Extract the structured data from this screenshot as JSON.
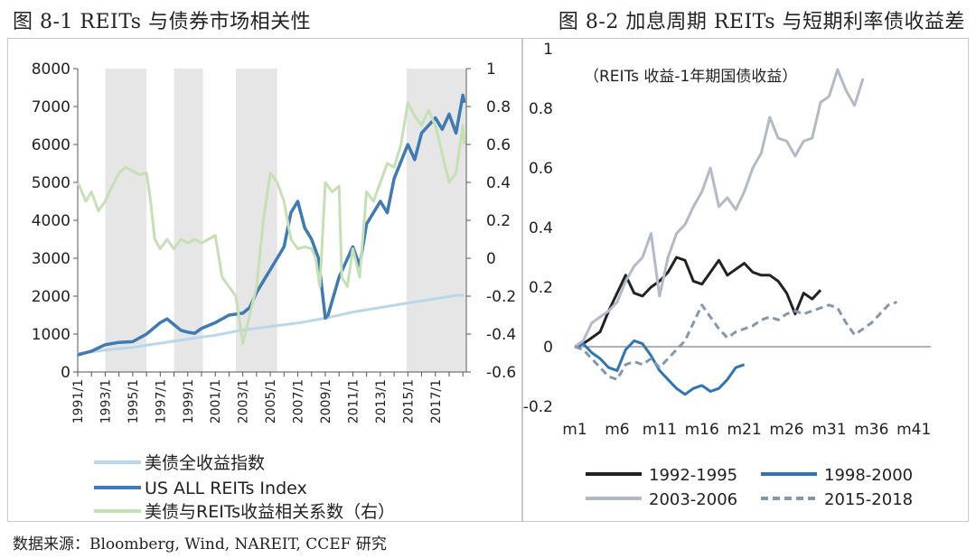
{
  "header": {
    "left_title": "图 8-1 REITs 与债券市场相关性",
    "right_title": "图 8-2 加息周期 REITs 与短期利率债收益差"
  },
  "footer": {
    "source": "数据来源：Bloomberg, Wind, NAREIT, CCEF 研究"
  },
  "colors": {
    "treasury": "#b9d7ea",
    "reits": "#3e7ab3",
    "correlation": "#c5e0b4",
    "shade": "#e6e6e6",
    "s1992": "#222222",
    "s1998": "#2f75b5",
    "s2003": "#b4b8c8",
    "s2015": "#8497b0"
  },
  "chart_data": [
    {
      "type": "line",
      "title": "图 8-1 REITs 与债券市场相关性",
      "x_range": [
        1991,
        2019.25
      ],
      "x_ticks": [
        "1991/1",
        "1993/1",
        "1995/1",
        "1997/1",
        "1999/1",
        "2001/1",
        "2003/1",
        "2005/1",
        "2007/1",
        "2009/1",
        "2011/1",
        "2013/1",
        "2015/1",
        "2017/1"
      ],
      "y_left": {
        "min": 0,
        "max": 8000,
        "ticks": [
          "0",
          "1000",
          "2000",
          "3000",
          "4000",
          "5000",
          "6000",
          "7000",
          "8000"
        ]
      },
      "y_right": {
        "min": -0.6,
        "max": 1.0,
        "ticks": [
          "-0.6",
          "-0.4",
          "-0.2",
          "0",
          "0.2",
          "0.4",
          "0.6",
          "0.8",
          "1"
        ]
      },
      "shaded_periods": [
        [
          1993.0,
          1996.0
        ],
        [
          1998.0,
          2000.1
        ],
        [
          2002.5,
          2005.5
        ],
        [
          2014.9,
          2019.2
        ]
      ],
      "series": [
        {
          "name": "美债全收益指数",
          "axis": "left",
          "color_key": "treasury",
          "x": [
            1991,
            1993,
            1995,
            1997,
            1999,
            2001,
            2003,
            2005,
            2007,
            2009,
            2011,
            2013,
            2015,
            2017,
            2018.5,
            2019.1
          ],
          "values": [
            480,
            580,
            650,
            760,
            870,
            970,
            1110,
            1200,
            1290,
            1420,
            1580,
            1700,
            1820,
            1930,
            2020,
            2020
          ]
        },
        {
          "name": "US ALL REITs Index",
          "axis": "left",
          "color_key": "reits",
          "x": [
            1991,
            1992,
            1993,
            1994,
            1995,
            1996,
            1997,
            1997.5,
            1998,
            1998.5,
            1999,
            1999.5,
            2000,
            2001,
            2002,
            2003,
            2003.5,
            2004,
            2005,
            2006,
            2006.5,
            2007,
            2007.5,
            2008,
            2008.5,
            2009,
            2009.2,
            2010,
            2011,
            2011.5,
            2012,
            2013,
            2013.5,
            2014,
            2015,
            2015.5,
            2016,
            2017,
            2017.5,
            2018,
            2018.5,
            2019,
            2019.1
          ],
          "values": [
            450,
            550,
            720,
            780,
            800,
            1000,
            1300,
            1400,
            1250,
            1100,
            1050,
            1020,
            1150,
            1300,
            1500,
            1550,
            1700,
            2100,
            2700,
            3300,
            4200,
            4500,
            3800,
            3500,
            3000,
            1420,
            1500,
            2500,
            3300,
            2800,
            3900,
            4500,
            4200,
            5100,
            6000,
            5600,
            6300,
            6700,
            6400,
            6800,
            6300,
            7300,
            7100
          ]
        },
        {
          "name": "美债与REITs收益相关系数（右）",
          "axis": "right",
          "color_key": "correlation",
          "x": [
            1991,
            1991.3,
            1991.6,
            1992,
            1992.5,
            1993,
            1993.3,
            1994,
            1994.5,
            1995,
            1995.5,
            1996,
            1996.3,
            1996.6,
            1997,
            1997.5,
            1998,
            1998.5,
            1999,
            1999.5,
            2000,
            2000.5,
            2001,
            2001.5,
            2002,
            2002.5,
            2003,
            2003.5,
            2004,
            2004.5,
            2005,
            2005.5,
            2006,
            2006.5,
            2007,
            2007.5,
            2008,
            2008.3,
            2008.6,
            2009,
            2009.5,
            2010,
            2010.2,
            2010.6,
            2011,
            2011.5,
            2012,
            2012.5,
            2013,
            2013.5,
            2014,
            2014.5,
            2015,
            2015.5,
            2016,
            2016.5,
            2017,
            2017.5,
            2018,
            2018.5,
            2019,
            2019.1
          ],
          "values": [
            0.4,
            0.35,
            0.3,
            0.35,
            0.25,
            0.3,
            0.35,
            0.45,
            0.48,
            0.46,
            0.44,
            0.45,
            0.3,
            0.1,
            0.05,
            0.1,
            0.05,
            0.1,
            0.08,
            0.1,
            0.08,
            0.1,
            0.12,
            -0.1,
            -0.15,
            -0.2,
            -0.45,
            -0.3,
            -0.15,
            0.2,
            0.45,
            0.4,
            0.3,
            0.1,
            0.05,
            0.06,
            0.05,
            0.0,
            -0.15,
            0.4,
            0.35,
            0.38,
            -0.1,
            -0.15,
            0.05,
            -0.1,
            0.35,
            0.3,
            0.4,
            0.5,
            0.48,
            0.6,
            0.82,
            0.75,
            0.7,
            0.78,
            0.7,
            0.55,
            0.4,
            0.45,
            0.7,
            0.6
          ]
        }
      ]
    },
    {
      "type": "line",
      "title": "图 8-2 加息周期 REITs 与短期利率债收益差",
      "annotation": "（REITs 收益-1年期国债收益）",
      "x_range": [
        1,
        43
      ],
      "x_ticks": [
        "m1",
        "m6",
        "m11",
        "m16",
        "m21",
        "m26",
        "m31",
        "m36",
        "m41"
      ],
      "y": {
        "min": -0.2,
        "max": 1.0,
        "ticks": [
          "-0.2",
          "0",
          "0.2",
          "0.4",
          "0.6",
          "0.8",
          "1"
        ]
      },
      "series": [
        {
          "name": "1992-1995",
          "color_key": "s1992",
          "dash": false,
          "values": [
            0,
            0.01,
            0.03,
            0.05,
            0.12,
            0.18,
            0.24,
            0.18,
            0.17,
            0.2,
            0.22,
            0.25,
            0.3,
            0.29,
            0.22,
            0.21,
            0.25,
            0.29,
            0.24,
            0.26,
            0.28,
            0.25,
            0.24,
            0.24,
            0.22,
            0.18,
            0.11,
            0.18,
            0.16,
            0.19
          ]
        },
        {
          "name": "1998-2000",
          "color_key": "s1998",
          "dash": false,
          "values": [
            0,
            0.01,
            -0.02,
            -0.04,
            -0.07,
            -0.08,
            -0.01,
            0.02,
            0.01,
            -0.03,
            -0.08,
            -0.11,
            -0.14,
            -0.16,
            -0.14,
            -0.13,
            -0.15,
            -0.14,
            -0.11,
            -0.07,
            -0.06
          ]
        },
        {
          "name": "2003-2006",
          "color_key": "s2003",
          "dash": false,
          "values": [
            0,
            0.02,
            0.08,
            0.1,
            0.12,
            0.15,
            0.22,
            0.27,
            0.3,
            0.38,
            0.17,
            0.3,
            0.38,
            0.41,
            0.47,
            0.52,
            0.6,
            0.47,
            0.5,
            0.46,
            0.52,
            0.6,
            0.65,
            0.77,
            0.7,
            0.69,
            0.64,
            0.69,
            0.7,
            0.82,
            0.84,
            0.93,
            0.86,
            0.81,
            0.9
          ]
        },
        {
          "name": "2015-2018",
          "color_key": "s2015",
          "dash": true,
          "values": [
            0,
            -0.01,
            -0.04,
            -0.07,
            -0.1,
            -0.11,
            -0.06,
            -0.05,
            -0.06,
            -0.04,
            -0.07,
            -0.04,
            -0.01,
            0.02,
            0.08,
            0.14,
            0.1,
            0.06,
            0.03,
            0.05,
            0.06,
            0.07,
            0.09,
            0.1,
            0.09,
            0.11,
            0.12,
            0.11,
            0.12,
            0.13,
            0.14,
            0.13,
            0.08,
            0.04,
            0.06,
            0.08,
            0.11,
            0.14,
            0.15
          ]
        }
      ]
    }
  ]
}
